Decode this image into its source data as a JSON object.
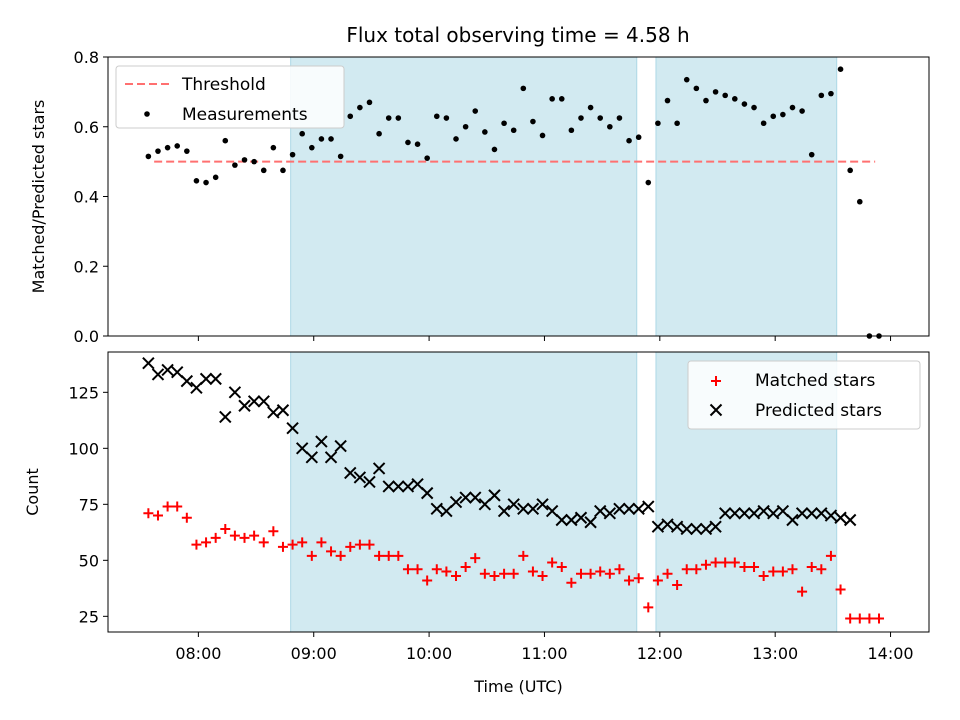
{
  "title": "Flux total observing time = 4.58 h",
  "colors": {
    "shade": "#add8e6",
    "threshold": "#ff7070",
    "matched": "#ff0000",
    "predicted": "#000000",
    "measure": "#000000"
  },
  "chart_data": [
    {
      "type": "scatter",
      "ylabel": "Matched/Predicted stars",
      "ylim": [
        0,
        0.8
      ],
      "y_ticks": [
        "0.0",
        "0.2",
        "0.4",
        "0.6",
        "0.8"
      ],
      "legend": {
        "placement": "top-left",
        "entries": [
          "Threshold",
          "Measurements"
        ]
      },
      "threshold": {
        "name": "Threshold",
        "value": 0.5,
        "x_range": [
          "07:37",
          "13:52"
        ]
      },
      "shaded_intervals": [
        [
          "08:48",
          "11:48"
        ],
        [
          "11:58",
          "13:32"
        ]
      ],
      "series": [
        {
          "name": "Measurements",
          "x": [
            "07:34",
            "07:39",
            "07:44",
            "07:49",
            "07:54",
            "07:59",
            "08:04",
            "08:09",
            "08:14",
            "08:19",
            "08:24",
            "08:29",
            "08:34",
            "08:39",
            "08:44",
            "08:49",
            "08:54",
            "08:59",
            "09:04",
            "09:09",
            "09:14",
            "09:19",
            "09:24",
            "09:29",
            "09:34",
            "09:39",
            "09:44",
            "09:49",
            "09:54",
            "09:59",
            "10:04",
            "10:09",
            "10:14",
            "10:19",
            "10:24",
            "10:29",
            "10:34",
            "10:39",
            "10:44",
            "10:49",
            "10:54",
            "10:59",
            "11:04",
            "11:09",
            "11:14",
            "11:19",
            "11:24",
            "11:29",
            "11:34",
            "11:39",
            "11:44",
            "11:49",
            "11:54",
            "11:59",
            "12:04",
            "12:09",
            "12:14",
            "12:19",
            "12:24",
            "12:29",
            "12:34",
            "12:39",
            "12:44",
            "12:49",
            "12:54",
            "12:59",
            "13:04",
            "13:09",
            "13:14",
            "13:19",
            "13:24",
            "13:29",
            "13:34",
            "13:39",
            "13:44",
            "13:49",
            "13:54"
          ],
          "y": [
            0.515,
            0.53,
            0.54,
            0.545,
            0.53,
            0.445,
            0.44,
            0.455,
            0.56,
            0.49,
            0.505,
            0.5,
            0.475,
            0.54,
            0.475,
            0.52,
            0.58,
            0.54,
            0.565,
            0.565,
            0.515,
            0.63,
            0.655,
            0.67,
            0.58,
            0.625,
            0.625,
            0.555,
            0.55,
            0.51,
            0.63,
            0.625,
            0.565,
            0.6,
            0.645,
            0.585,
            0.535,
            0.61,
            0.59,
            0.71,
            0.615,
            0.575,
            0.68,
            0.68,
            0.59,
            0.625,
            0.655,
            0.625,
            0.6,
            0.625,
            0.56,
            0.57,
            0.44,
            0.61,
            0.675,
            0.61,
            0.735,
            0.71,
            0.675,
            0.7,
            0.69,
            0.68,
            0.665,
            0.655,
            0.61,
            0.63,
            0.635,
            0.655,
            0.645,
            0.52,
            0.69,
            0.695,
            0.765,
            0.475,
            0.385,
            0.0,
            0.0
          ]
        }
      ]
    },
    {
      "type": "scatter",
      "xlabel": "Time (UTC)",
      "ylabel": "Count",
      "ylim": [
        18,
        143
      ],
      "y_ticks": [
        "25",
        "50",
        "75",
        "100",
        "125"
      ],
      "x_ticks": [
        "08:00",
        "09:00",
        "10:00",
        "11:00",
        "12:00",
        "13:00",
        "14:00"
      ],
      "legend": {
        "placement": "top-right",
        "entries": [
          "Matched stars",
          "Predicted stars"
        ]
      },
      "shaded_intervals": [
        [
          "08:48",
          "11:48"
        ],
        [
          "11:58",
          "13:32"
        ]
      ],
      "series": [
        {
          "name": "Matched stars",
          "x": [
            "07:34",
            "07:39",
            "07:44",
            "07:49",
            "07:54",
            "07:59",
            "08:04",
            "08:09",
            "08:14",
            "08:19",
            "08:24",
            "08:29",
            "08:34",
            "08:39",
            "08:44",
            "08:49",
            "08:54",
            "08:59",
            "09:04",
            "09:09",
            "09:14",
            "09:19",
            "09:24",
            "09:29",
            "09:34",
            "09:39",
            "09:44",
            "09:49",
            "09:54",
            "09:59",
            "10:04",
            "10:09",
            "10:14",
            "10:19",
            "10:24",
            "10:29",
            "10:34",
            "10:39",
            "10:44",
            "10:49",
            "10:54",
            "10:59",
            "11:04",
            "11:09",
            "11:14",
            "11:19",
            "11:24",
            "11:29",
            "11:34",
            "11:39",
            "11:44",
            "11:49",
            "11:54",
            "11:59",
            "12:04",
            "12:09",
            "12:14",
            "12:19",
            "12:24",
            "12:29",
            "12:34",
            "12:39",
            "12:44",
            "12:49",
            "12:54",
            "12:59",
            "13:04",
            "13:09",
            "13:14",
            "13:19",
            "13:24",
            "13:29",
            "13:34",
            "13:39",
            "13:44",
            "13:49",
            "13:54"
          ],
          "y": [
            71,
            70,
            74,
            74,
            69,
            57,
            58,
            60,
            64,
            61,
            60,
            61,
            58,
            63,
            56,
            57,
            58,
            52,
            58,
            54,
            52,
            56,
            57,
            57,
            52,
            52,
            52,
            46,
            46,
            41,
            46,
            45,
            43,
            47,
            51,
            44,
            43,
            44,
            44,
            52,
            45,
            43,
            49,
            47,
            40,
            44,
            44,
            45,
            44,
            46,
            41,
            42,
            29,
            41,
            44,
            39,
            46,
            46,
            48,
            49,
            49,
            49,
            47,
            47,
            43,
            45,
            45,
            46,
            36,
            47,
            46,
            52,
            37,
            24,
            24,
            24,
            24
          ]
        },
        {
          "name": "Predicted stars",
          "x": [
            "07:34",
            "07:39",
            "07:44",
            "07:49",
            "07:54",
            "07:59",
            "08:04",
            "08:09",
            "08:14",
            "08:19",
            "08:24",
            "08:29",
            "08:34",
            "08:39",
            "08:44",
            "08:49",
            "08:54",
            "08:59",
            "09:04",
            "09:09",
            "09:14",
            "09:19",
            "09:24",
            "09:29",
            "09:34",
            "09:39",
            "09:44",
            "09:49",
            "09:54",
            "09:59",
            "10:04",
            "10:09",
            "10:14",
            "10:19",
            "10:24",
            "10:29",
            "10:34",
            "10:39",
            "10:44",
            "10:49",
            "10:54",
            "10:59",
            "11:04",
            "11:09",
            "11:14",
            "11:19",
            "11:24",
            "11:29",
            "11:34",
            "11:39",
            "11:44",
            "11:49",
            "11:54",
            "11:59",
            "12:04",
            "12:09",
            "12:14",
            "12:19",
            "12:24",
            "12:29",
            "12:34",
            "12:39",
            "12:44",
            "12:49",
            "12:54",
            "12:59",
            "13:04",
            "13:09",
            "13:14",
            "13:19",
            "13:24",
            "13:29",
            "13:34",
            "13:39"
          ],
          "y": [
            138,
            133,
            135,
            134,
            130,
            127,
            131,
            131,
            114,
            125,
            119,
            121,
            121,
            116,
            117,
            109,
            100,
            96,
            103,
            96,
            101,
            89,
            87,
            85,
            91,
            83,
            83,
            83,
            84,
            80,
            73,
            72,
            76,
            78,
            78,
            75,
            79,
            72,
            75,
            73,
            73,
            75,
            72,
            68,
            68,
            69,
            67,
            72,
            71,
            73,
            73,
            73,
            74,
            65,
            66,
            65,
            64,
            64,
            64,
            65,
            71,
            71,
            71,
            71,
            72,
            71,
            72,
            68,
            71,
            71,
            71,
            70,
            69,
            68
          ]
        }
      ]
    }
  ]
}
